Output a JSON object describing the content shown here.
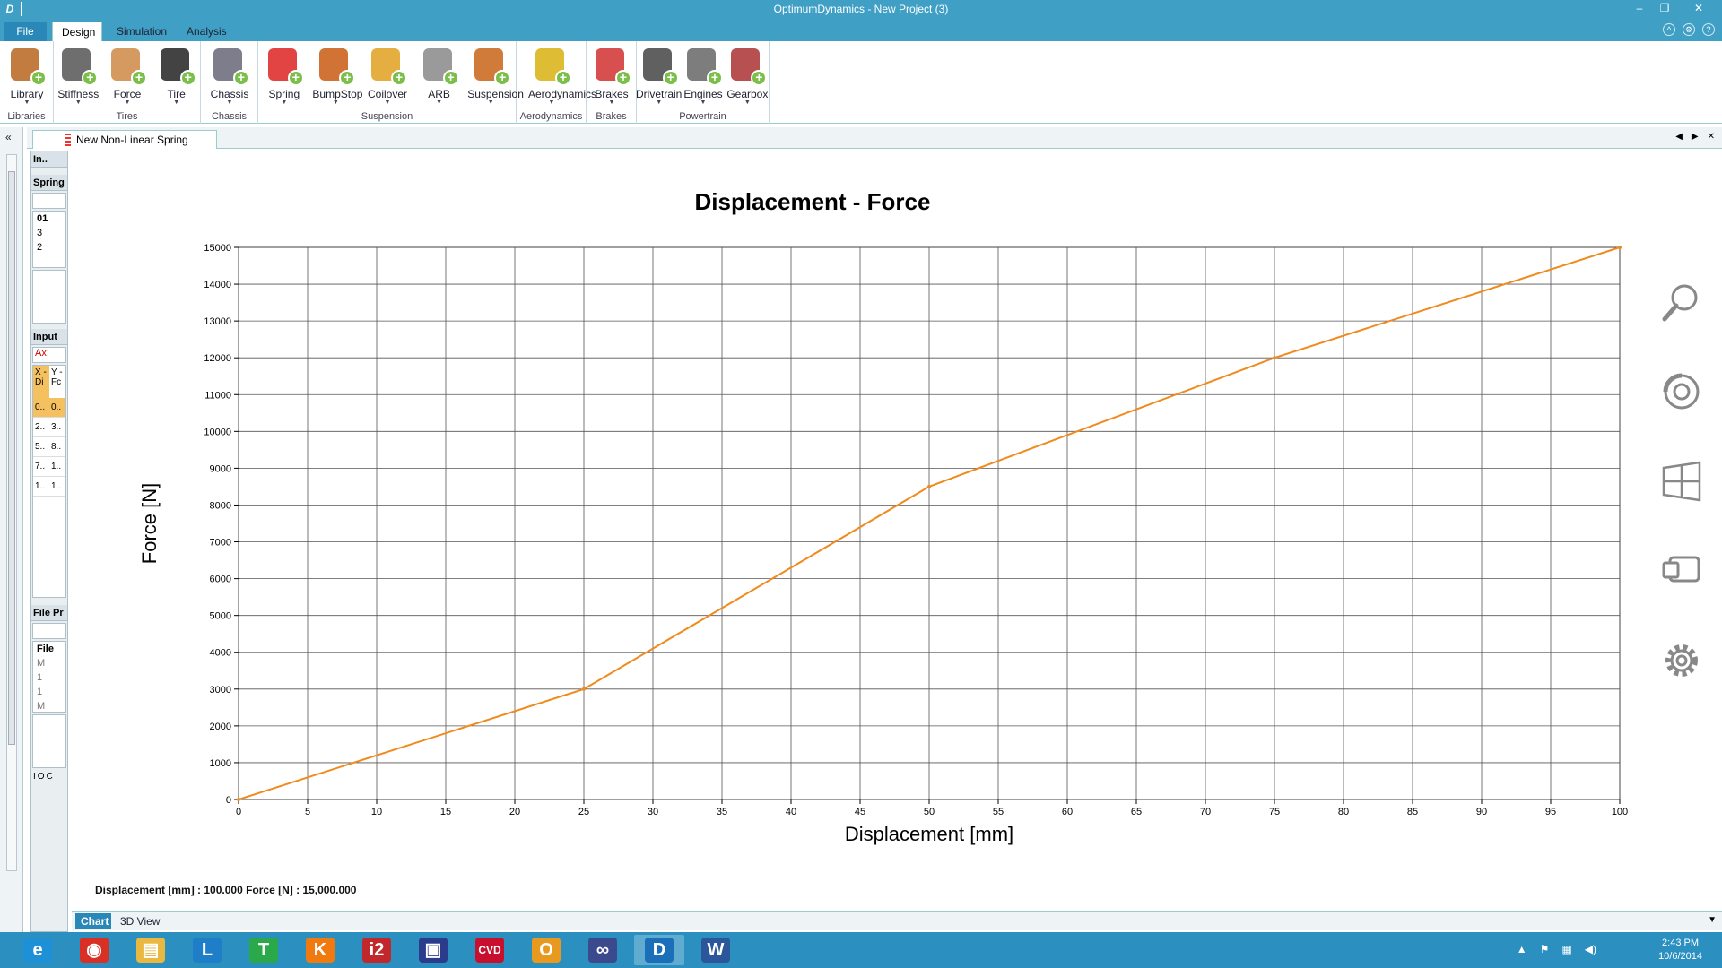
{
  "window": {
    "title": "OptimumDynamics - New Project (3)",
    "icon_letter": "D",
    "min": "–",
    "restore": "❐",
    "close": "✕"
  },
  "menu": {
    "file": "File",
    "tabs": [
      "Design",
      "Simulation",
      "Analysis"
    ]
  },
  "ribbon": {
    "groups": [
      {
        "label": "Libraries",
        "buttons": [
          {
            "label": "Library",
            "icon": "library-icon"
          }
        ]
      },
      {
        "label": "Tires",
        "buttons": [
          {
            "label": "Stiffness",
            "icon": "stiffness-icon"
          },
          {
            "label": "Force",
            "icon": "force-icon"
          },
          {
            "label": "Tire",
            "icon": "tire-icon"
          }
        ]
      },
      {
        "label": "Chassis",
        "buttons": [
          {
            "label": "Chassis",
            "icon": "chassis-icon"
          }
        ]
      },
      {
        "label": "Suspension",
        "buttons": [
          {
            "label": "Spring",
            "icon": "spring-icon"
          },
          {
            "label": "BumpStop",
            "icon": "bumpstop-icon"
          },
          {
            "label": "Coilover",
            "icon": "coilover-icon"
          },
          {
            "label": "ARB",
            "icon": "arb-icon"
          },
          {
            "label": "Suspension",
            "icon": "suspension-icon"
          }
        ]
      },
      {
        "label": "Aerodynamics",
        "buttons": [
          {
            "label": "Aerodynamics",
            "icon": "aerodynamics-icon"
          }
        ]
      },
      {
        "label": "Brakes",
        "buttons": [
          {
            "label": "Brakes",
            "icon": "brakes-icon"
          }
        ]
      },
      {
        "label": "Powertrain",
        "buttons": [
          {
            "label": "Drivetrain",
            "icon": "drivetrain-icon"
          },
          {
            "label": "Engines",
            "icon": "engines-icon"
          },
          {
            "label": "Gearbox",
            "icon": "gearbox-icon"
          }
        ]
      }
    ]
  },
  "left_strip": {
    "collapse": "«"
  },
  "panel": {
    "in": "In..",
    "spring": "Spring",
    "tree": [
      "01",
      "3",
      "2"
    ],
    "input": "Input",
    "ax": "Ax:",
    "cols": [
      "X - Di",
      "Y - Fc"
    ],
    "rows": [
      [
        "0..",
        "0.."
      ],
      [
        "2..",
        "3.."
      ],
      [
        "5..",
        "8.."
      ],
      [
        "7..",
        "1.."
      ],
      [
        "1..",
        "1.."
      ]
    ],
    "file": "File Pr",
    "file_tree": [
      "File",
      "M",
      "1",
      "1",
      "M"
    ],
    "bottom": [
      "I",
      "O",
      "C"
    ]
  },
  "doc_tab": {
    "label": "New Non-Linear Spring"
  },
  "chart_data": {
    "type": "line",
    "title": "Displacement - Force",
    "xlabel": "Displacement [mm]",
    "ylabel": "Force [N]",
    "xlim": [
      0,
      100
    ],
    "ylim": [
      0,
      15000
    ],
    "xticks": [
      0,
      5,
      10,
      15,
      20,
      25,
      30,
      35,
      40,
      45,
      50,
      55,
      60,
      65,
      70,
      75,
      80,
      85,
      90,
      95,
      100
    ],
    "yticks": [
      0,
      1000,
      2000,
      3000,
      4000,
      5000,
      6000,
      7000,
      8000,
      9000,
      10000,
      11000,
      12000,
      13000,
      14000,
      15000
    ],
    "grid": true,
    "series": [
      {
        "x": [
          0,
          25,
          50,
          75,
          100
        ],
        "y": [
          0,
          3000,
          8500,
          12000,
          15000
        ],
        "color": "#f08a1c"
      }
    ]
  },
  "side_icons": [
    "zoom-icon",
    "rotate-icon",
    "window-icon",
    "screen-icon",
    "settings-icon"
  ],
  "readout": "Displacement [mm] : 100.000 Force [N] : 15,000.000",
  "bottom_tabs": {
    "chart": "Chart",
    "view3d": "3D View"
  },
  "taskbar": {
    "apps": [
      {
        "name": "internet-explorer-icon",
        "glyph": "e",
        "color": "#1e90d6"
      },
      {
        "name": "chrome-icon",
        "glyph": "◉",
        "color": "#d93025"
      },
      {
        "name": "file-explorer-icon",
        "glyph": "▤",
        "color": "#e8b840"
      },
      {
        "name": "app-l-icon",
        "glyph": "L",
        "color": "#1e7ec8"
      },
      {
        "name": "app-t-icon",
        "glyph": "T",
        "color": "#2aa84a"
      },
      {
        "name": "app-k-icon",
        "glyph": "K",
        "color": "#f07a10"
      },
      {
        "name": "i2-pro-icon",
        "glyph": "i2",
        "color": "#c0282c"
      },
      {
        "name": "app-cube-icon",
        "glyph": "▣",
        "color": "#2c3c8c"
      },
      {
        "name": "cvd-icon",
        "glyph": "CVD",
        "color": "#c8102e"
      },
      {
        "name": "outlook-icon",
        "glyph": "O",
        "color": "#e89a20"
      },
      {
        "name": "app-loop-icon",
        "glyph": "∞",
        "color": "#3a4a8c"
      },
      {
        "name": "optimumdynamics-icon",
        "glyph": "D",
        "color": "#1a6fb8"
      },
      {
        "name": "word-icon",
        "glyph": "W",
        "color": "#2b579a"
      }
    ],
    "time": "2:43 PM",
    "date": "10/6/2014"
  }
}
